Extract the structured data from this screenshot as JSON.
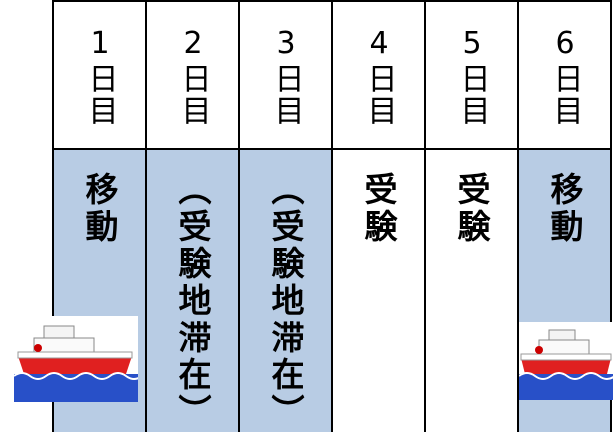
{
  "table": {
    "columns": [
      {
        "header": "1日目",
        "cell": "移動",
        "shaded": true
      },
      {
        "header": "2日目",
        "cell": "（受験地滞在）",
        "shaded": true
      },
      {
        "header": "3日目",
        "cell": "（受験地滞在）",
        "shaded": true
      },
      {
        "header": "4日目",
        "cell": "受験",
        "shaded": false
      },
      {
        "header": "5日目",
        "cell": "受験",
        "shaded": false
      },
      {
        "header": "6日目",
        "cell": "移動",
        "shaded": true
      }
    ]
  }
}
